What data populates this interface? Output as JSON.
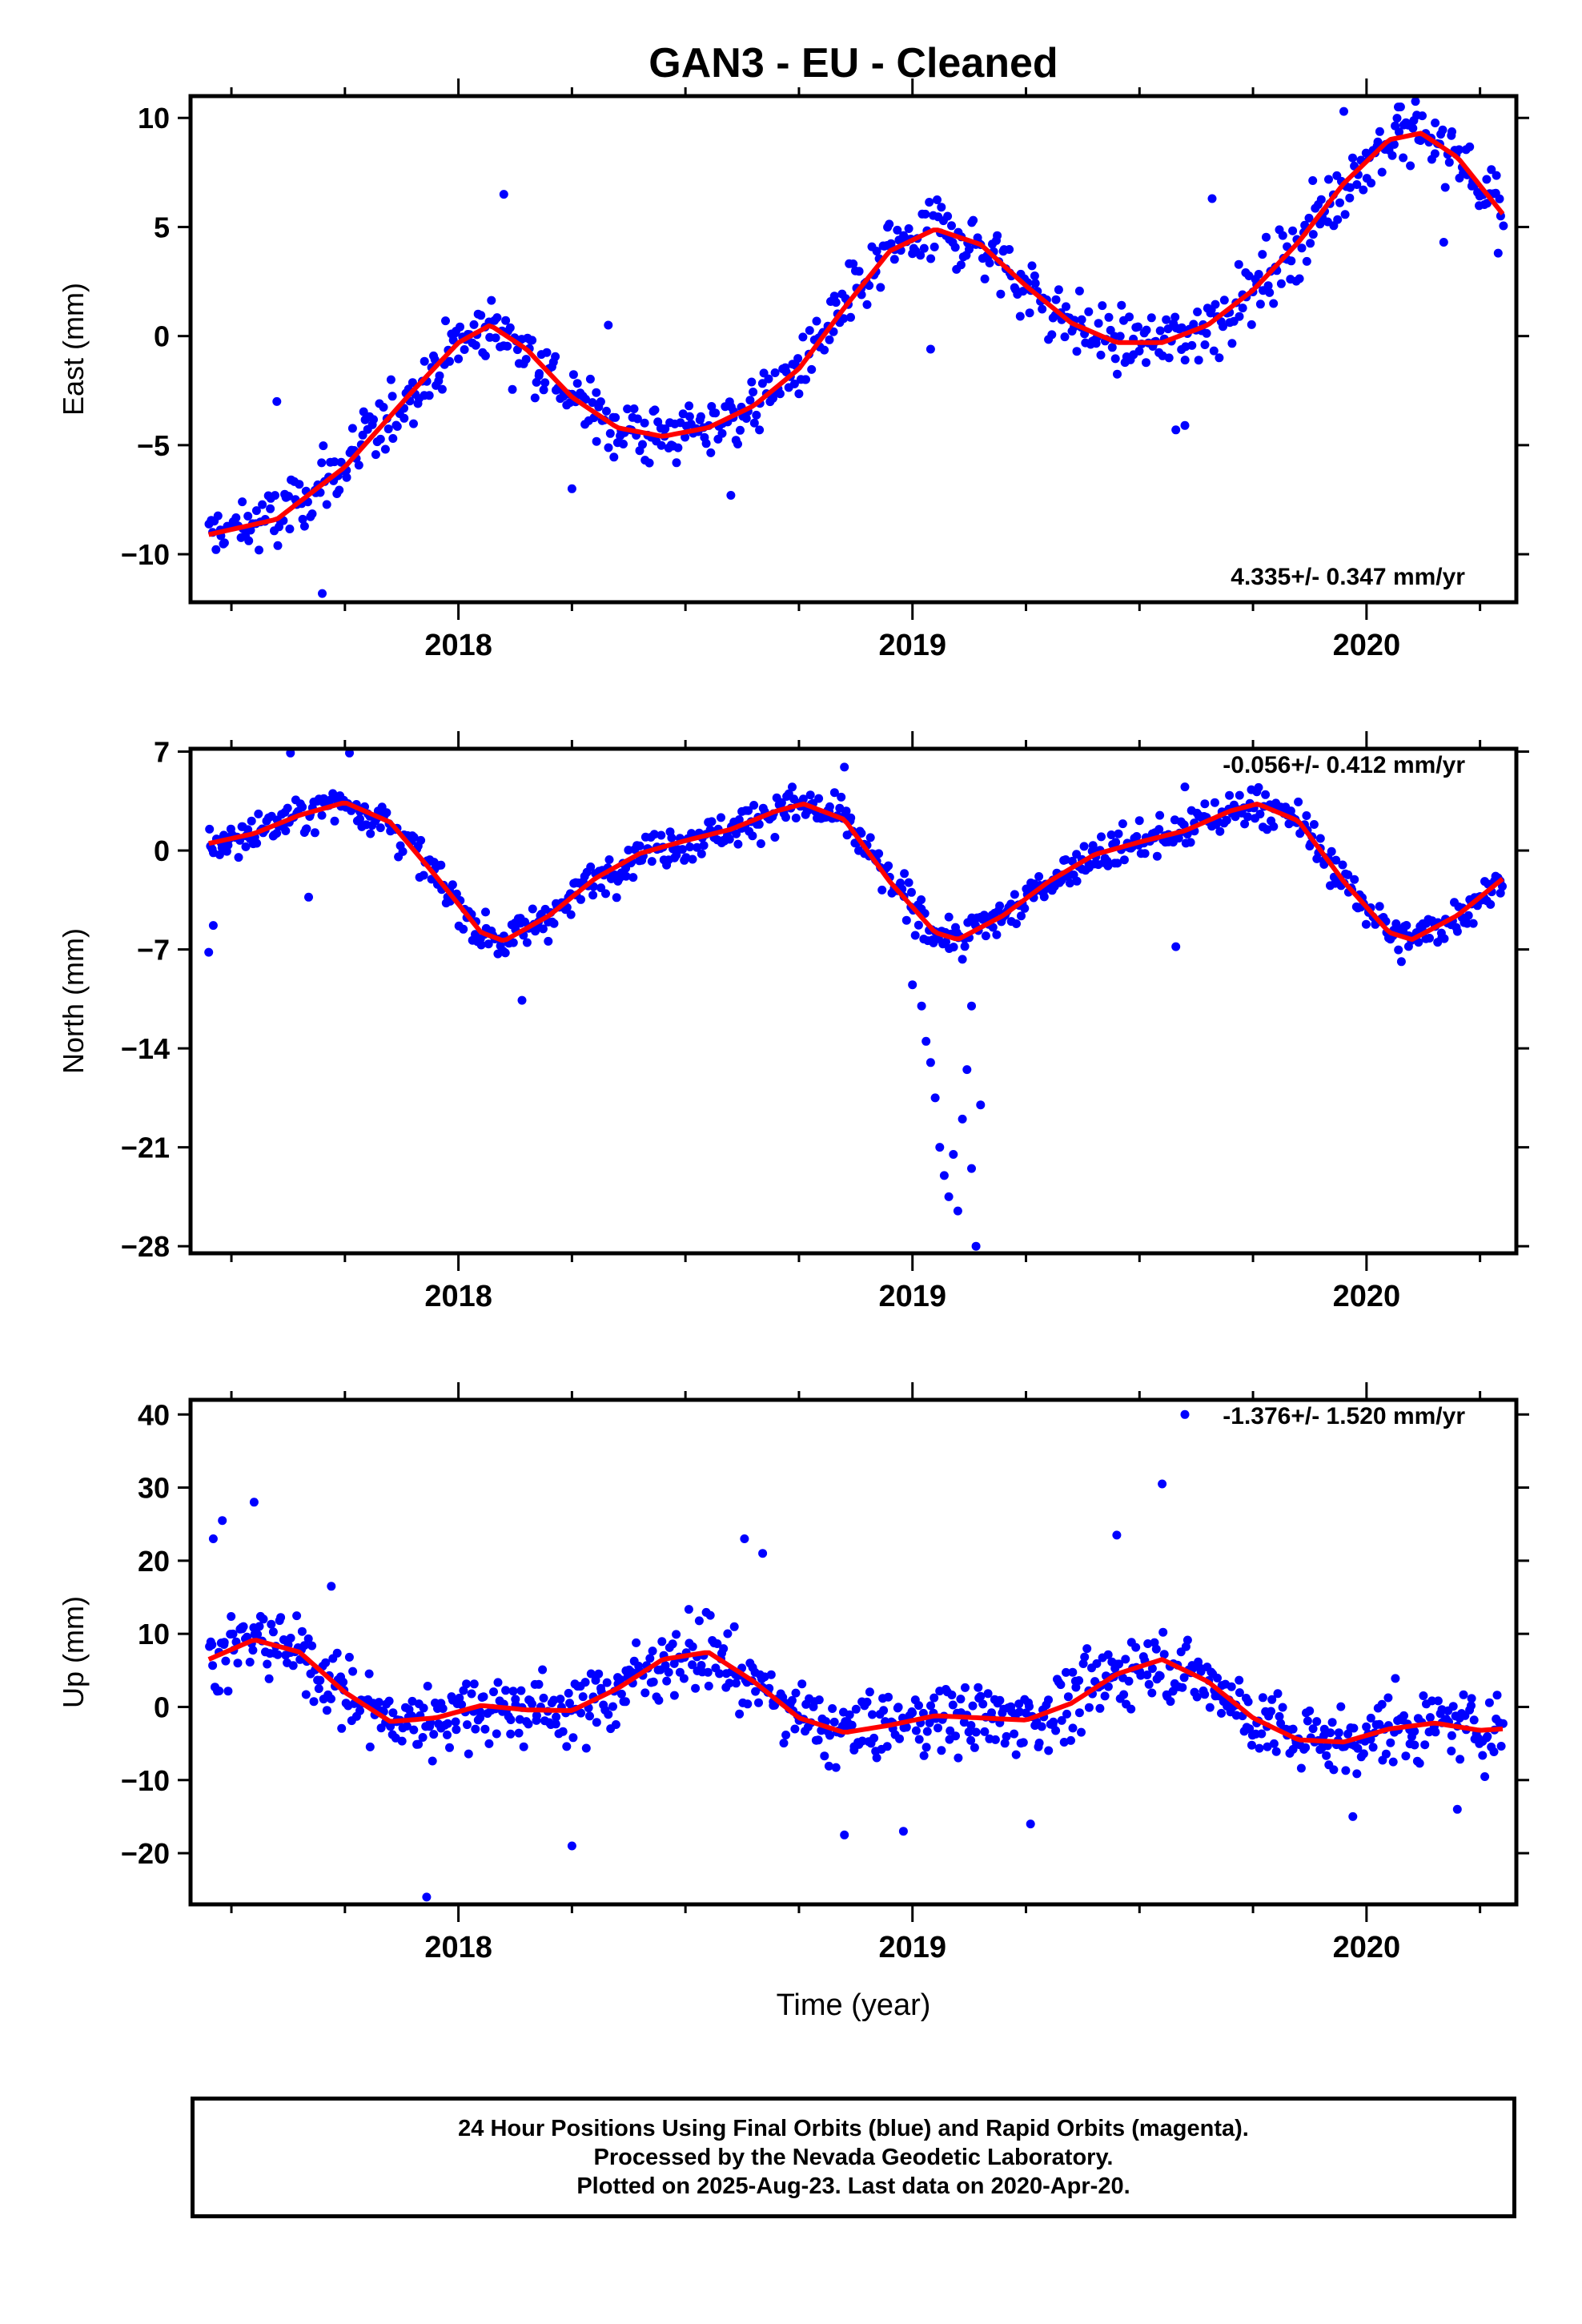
{
  "figure": {
    "title": "GAN3  - EU - Cleaned",
    "xlabel": "Time (year)",
    "footer": [
      "24 Hour Positions Using Final Orbits (blue) and Rapid Orbits (magenta).",
      "Processed by the Nevada Geodetic Laboratory.",
      "Plotted on 2025-Aug-23. Last data on 2020-Apr-20."
    ],
    "colors": {
      "points": "#0000ff",
      "model": "#ff0000",
      "axes": "#000000"
    }
  },
  "chart_data": [
    {
      "type": "scatter",
      "component": "East",
      "ylabel": "East (mm)",
      "rate_label": "4.335+/- 0.347 mm/yr",
      "xlim": [
        2017.41,
        2020.33
      ],
      "ylim": [
        -12.2,
        11
      ],
      "xticks": [
        2018,
        2019,
        2020
      ],
      "xtick_labels": [
        "2018",
        "2019",
        "2020"
      ],
      "yticks": [
        -10,
        -5,
        0,
        5,
        10
      ],
      "ytick_labels": [
        "−10",
        "−5",
        "0",
        "5",
        "10"
      ],
      "series": [
        {
          "kind": "model",
          "x": [
            2017.45,
            2017.6,
            2017.75,
            2017.9,
            2018.0,
            2018.07,
            2018.15,
            2018.25,
            2018.35,
            2018.45,
            2018.55,
            2018.65,
            2018.75,
            2018.85,
            2018.95,
            2019.05,
            2019.15,
            2019.25,
            2019.35,
            2019.45,
            2019.55,
            2019.65,
            2019.75,
            2019.85,
            2019.95,
            2020.05,
            2020.12,
            2020.2,
            2020.3
          ],
          "y": [
            -9.1,
            -8.4,
            -6.0,
            -2.5,
            -0.3,
            0.5,
            -0.6,
            -2.8,
            -4.2,
            -4.6,
            -4.2,
            -3.2,
            -1.5,
            1.3,
            3.9,
            4.9,
            4.2,
            2.3,
            0.6,
            -0.3,
            -0.3,
            0.5,
            2.1,
            4.3,
            7.0,
            9.0,
            9.3,
            8.2,
            5.6
          ]
        },
        {
          "kind": "points",
          "x_start": 2017.45,
          "x_end": 2020.3,
          "count": 700,
          "noise": 1.4,
          "outliers": [
            [
              2017.6,
              -3.0
            ],
            [
              2017.7,
              -11.8
            ],
            [
              2018.1,
              6.5
            ],
            [
              2018.25,
              -7.0
            ],
            [
              2018.33,
              0.5
            ],
            [
              2018.6,
              -7.3
            ],
            [
              2019.04,
              -0.6
            ],
            [
              2019.58,
              -4.3
            ],
            [
              2019.6,
              -4.1
            ],
            [
              2019.66,
              6.3
            ],
            [
              2019.95,
              10.3
            ],
            [
              2020.07,
              10.5
            ],
            [
              2020.17,
              4.3
            ],
            [
              2020.29,
              3.8
            ]
          ]
        }
      ]
    },
    {
      "type": "scatter",
      "component": "North",
      "ylabel": "North (mm)",
      "rate_label": "-0.056+/- 0.412 mm/yr",
      "xlim": [
        2017.41,
        2020.33
      ],
      "ylim": [
        -28.5,
        7.2
      ],
      "xticks": [
        2018,
        2019,
        2020
      ],
      "xtick_labels": [
        "2018",
        "2019",
        "2020"
      ],
      "yticks": [
        -28,
        -21,
        -14,
        -7,
        0,
        7
      ],
      "ytick_labels": [
        "−28",
        "−21",
        "−14",
        "−7",
        "0",
        "7"
      ],
      "series": [
        {
          "kind": "model",
          "x": [
            2017.45,
            2017.55,
            2017.65,
            2017.75,
            2017.85,
            2017.95,
            2018.05,
            2018.1,
            2018.2,
            2018.3,
            2018.4,
            2018.5,
            2018.6,
            2018.7,
            2018.76,
            2018.85,
            2018.95,
            2019.05,
            2019.1,
            2019.2,
            2019.3,
            2019.4,
            2019.5,
            2019.6,
            2019.7,
            2019.76,
            2019.85,
            2019.95,
            2020.05,
            2020.1,
            2020.2,
            2020.3
          ],
          "y": [
            0.5,
            1.2,
            2.5,
            3.4,
            2.0,
            -1.8,
            -5.8,
            -6.4,
            -4.6,
            -2.0,
            -0.2,
            0.7,
            1.5,
            2.8,
            3.3,
            2.2,
            -2.2,
            -5.8,
            -6.3,
            -4.6,
            -2.2,
            -0.3,
            0.6,
            1.4,
            2.8,
            3.3,
            2.1,
            -2.2,
            -5.8,
            -6.3,
            -4.6,
            -2.0
          ]
        },
        {
          "kind": "points",
          "x_start": 2017.45,
          "x_end": 2020.3,
          "count": 750,
          "noise": 1.3,
          "outliers": [
            [
              2017.45,
              -7.2
            ],
            [
              2017.46,
              -5.3
            ],
            [
              2017.63,
              6.9
            ],
            [
              2017.67,
              -3.3
            ],
            [
              2017.76,
              6.9
            ],
            [
              2018.14,
              -10.6
            ],
            [
              2018.85,
              5.9
            ],
            [
              2019.0,
              -9.5
            ],
            [
              2019.02,
              -11.0
            ],
            [
              2019.03,
              -13.5
            ],
            [
              2019.04,
              -15.0
            ],
            [
              2019.05,
              -17.5
            ],
            [
              2019.06,
              -21.0
            ],
            [
              2019.07,
              -23.0
            ],
            [
              2019.08,
              -24.5
            ],
            [
              2019.09,
              -21.5
            ],
            [
              2019.1,
              -25.5
            ],
            [
              2019.11,
              -19.0
            ],
            [
              2019.12,
              -15.5
            ],
            [
              2019.13,
              -11.0
            ],
            [
              2019.13,
              -22.5
            ],
            [
              2019.14,
              -28.0
            ],
            [
              2019.15,
              -18.0
            ],
            [
              2019.58,
              -6.8
            ],
            [
              2019.6,
              4.5
            ]
          ]
        }
      ]
    },
    {
      "type": "scatter",
      "component": "Up",
      "ylabel": "Up (mm)",
      "rate_label": "-1.376+/- 1.520 mm/yr",
      "xlim": [
        2017.41,
        2020.33
      ],
      "ylim": [
        -27,
        42
      ],
      "xticks": [
        2018,
        2019,
        2020
      ],
      "xtick_labels": [
        "2018",
        "2019",
        "2020"
      ],
      "yticks": [
        -20,
        -10,
        0,
        10,
        20,
        30,
        40
      ],
      "ytick_labels": [
        "−20",
        "−10",
        "0",
        "10",
        "20",
        "30",
        "40"
      ],
      "series": [
        {
          "kind": "model",
          "x": [
            2017.45,
            2017.55,
            2017.65,
            2017.75,
            2017.85,
            2017.95,
            2018.05,
            2018.15,
            2018.25,
            2018.35,
            2018.45,
            2018.55,
            2018.65,
            2018.75,
            2018.85,
            2018.95,
            2019.05,
            2019.15,
            2019.25,
            2019.35,
            2019.45,
            2019.55,
            2019.65,
            2019.75,
            2019.85,
            2019.95,
            2020.05,
            2020.15,
            2020.25,
            2020.3
          ],
          "y": [
            6.5,
            9.2,
            7.5,
            2.0,
            -2.0,
            -1.5,
            0.2,
            -0.4,
            -0.5,
            2.5,
            6.5,
            7.5,
            3.5,
            -1.5,
            -3.5,
            -2.5,
            -1.2,
            -1.5,
            -1.8,
            0.5,
            4.5,
            6.5,
            3.5,
            -1.5,
            -4.5,
            -4.8,
            -3.0,
            -2.2,
            -3.2,
            -3.0
          ]
        },
        {
          "kind": "points",
          "x_start": 2017.45,
          "x_end": 2020.3,
          "count": 800,
          "noise": 4.5,
          "outliers": [
            [
              2017.46,
              23.0
            ],
            [
              2017.48,
              25.5
            ],
            [
              2017.55,
              28.0
            ],
            [
              2017.72,
              16.5
            ],
            [
              2017.93,
              -26.0
            ],
            [
              2018.25,
              -19.0
            ],
            [
              2018.63,
              23.0
            ],
            [
              2018.67,
              21.0
            ],
            [
              2018.85,
              -17.5
            ],
            [
              2018.98,
              -17.0
            ],
            [
              2019.26,
              -16.0
            ],
            [
              2019.45,
              23.5
            ],
            [
              2019.55,
              30.5
            ],
            [
              2019.6,
              40.0
            ],
            [
              2019.97,
              -15.0
            ],
            [
              2020.2,
              -14.0
            ]
          ]
        }
      ]
    }
  ]
}
